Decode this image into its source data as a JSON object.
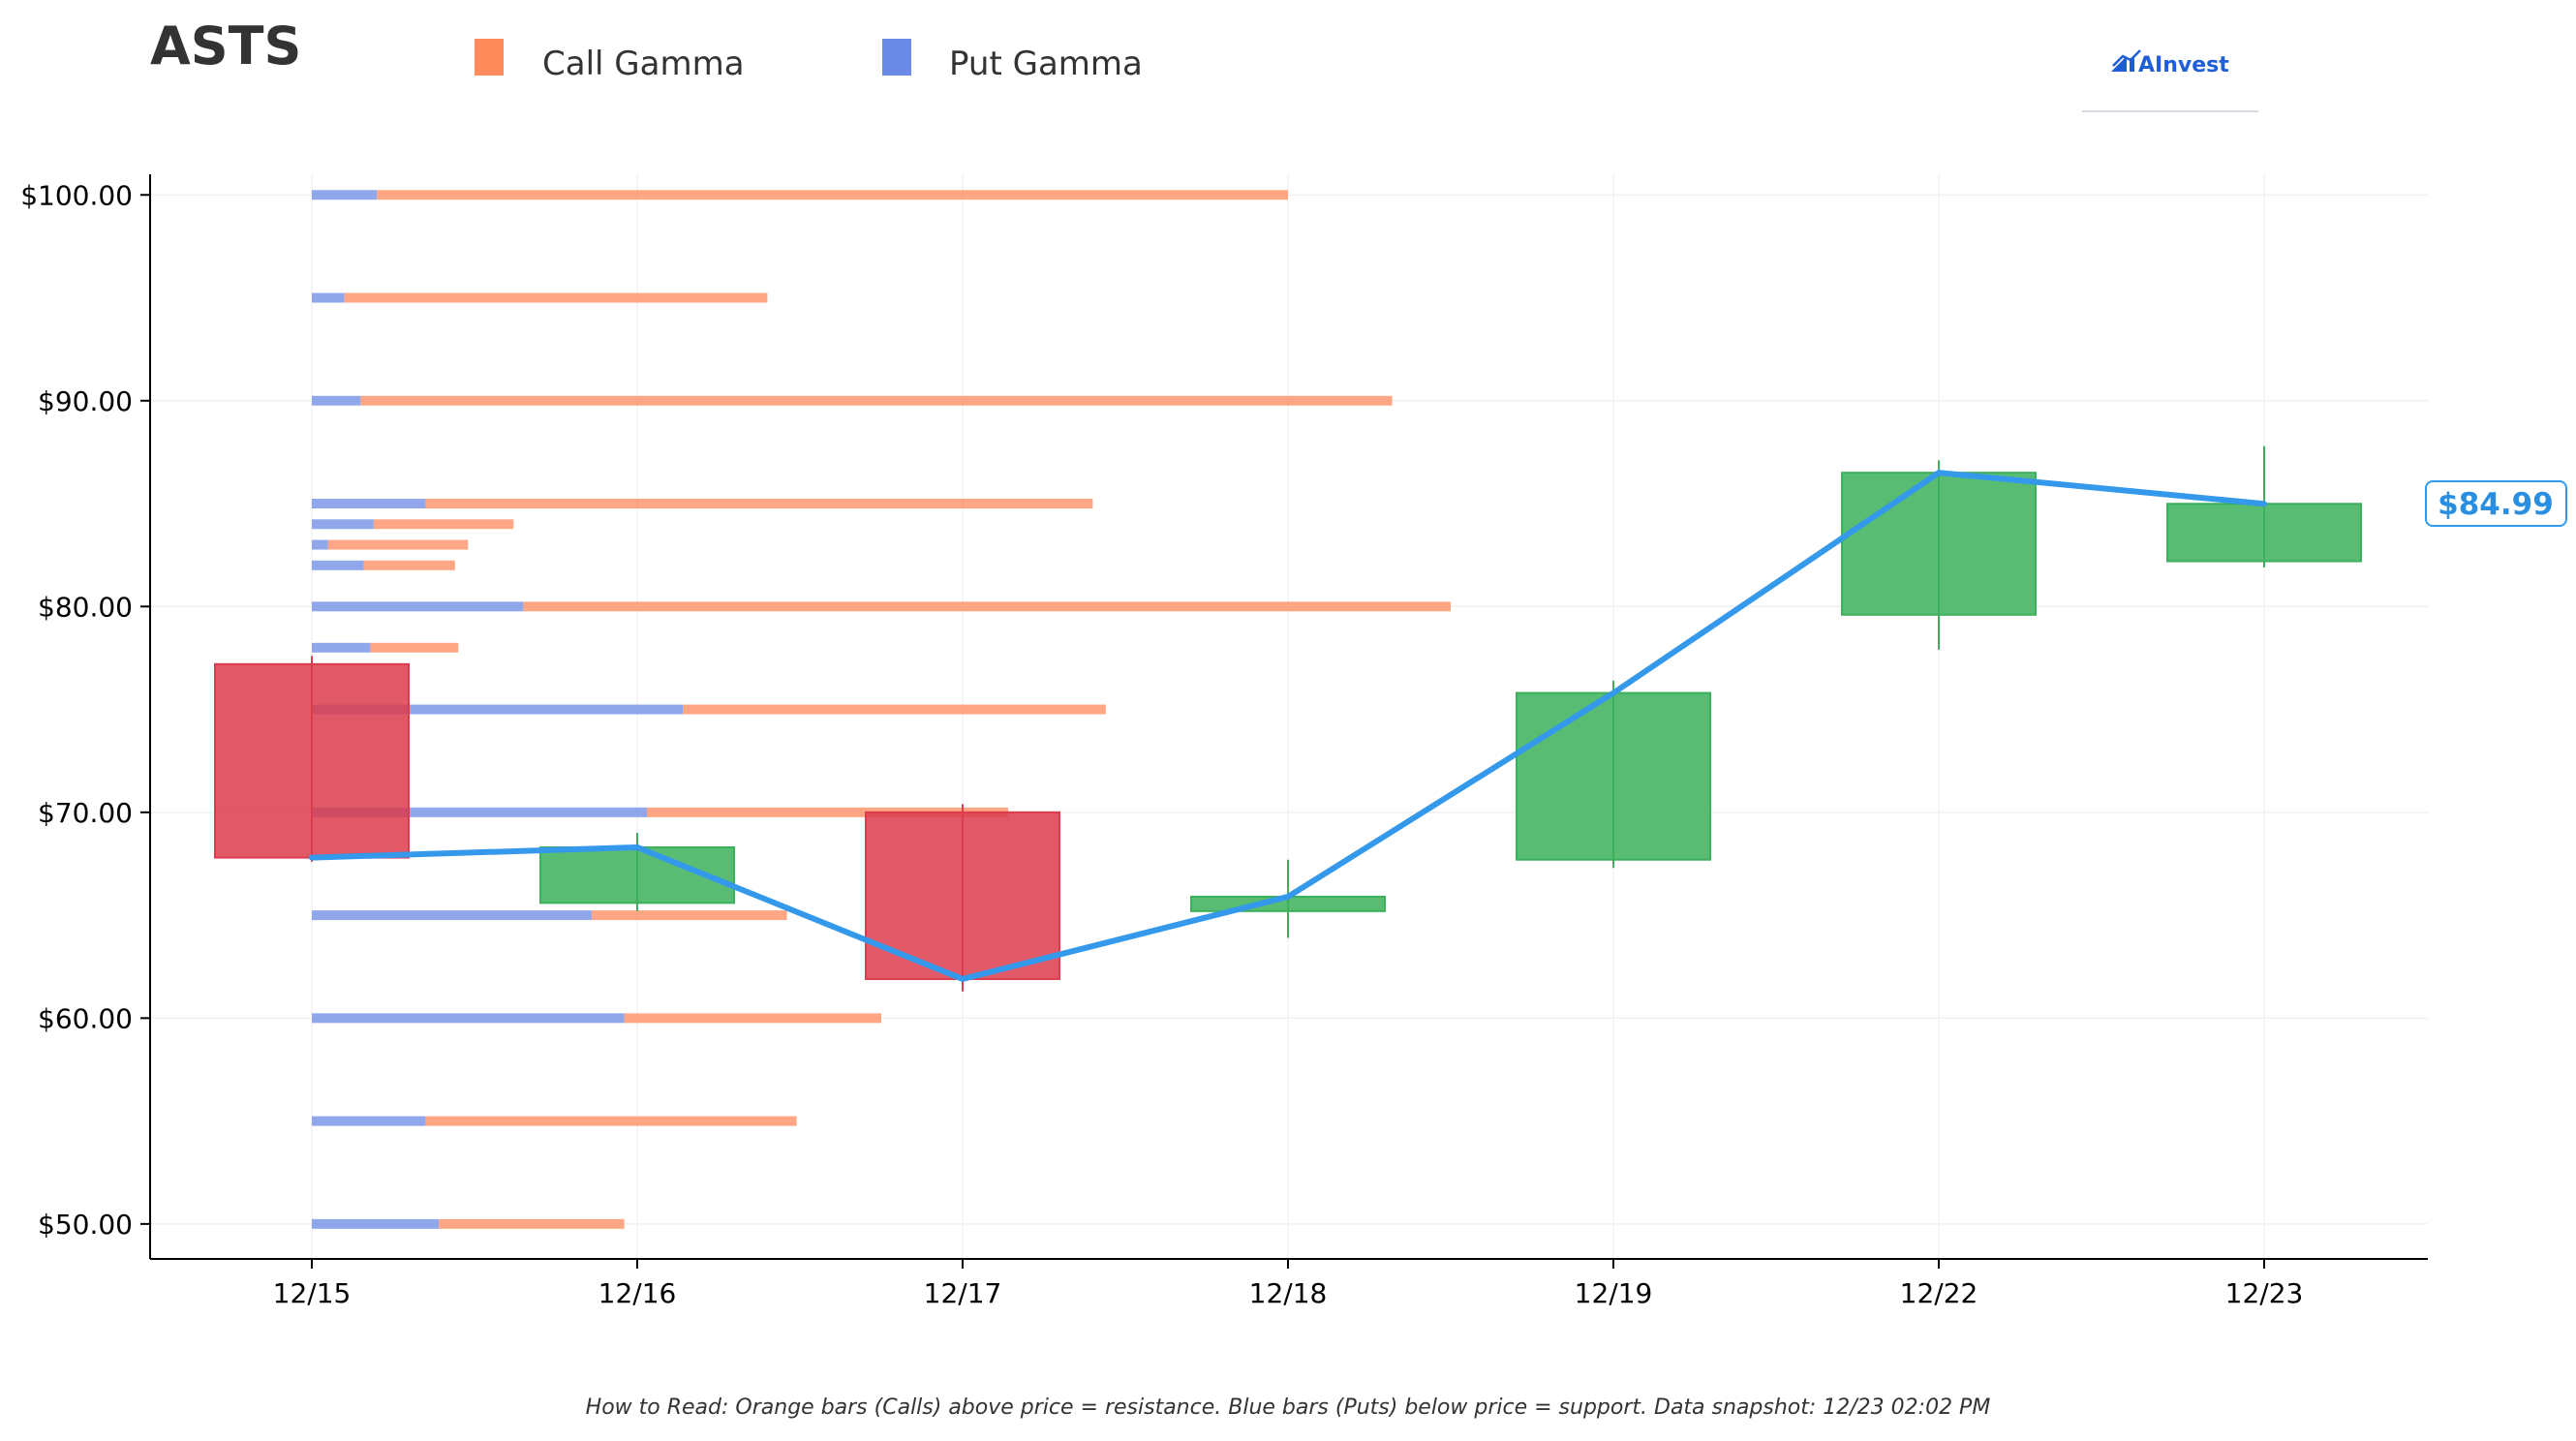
{
  "chart_data": {
    "type": "candlestick",
    "title": "ASTS",
    "legend": [
      {
        "label": "Call Gamma",
        "color": "#ff8a5c"
      },
      {
        "label": "Put Gamma",
        "color": "#6b8ae6"
      }
    ],
    "legend_placement": "top",
    "brand": "AInvest",
    "categories": [
      "12/15",
      "12/16",
      "12/17",
      "12/18",
      "12/19",
      "12/22",
      "12/23"
    ],
    "ylim": [
      48.3,
      101.0
    ],
    "yticks": [
      50,
      60,
      70,
      80,
      90,
      100
    ],
    "ytick_labels": [
      "$50.00",
      "$60.00",
      "$70.00",
      "$80.00",
      "$90.00",
      "$100.00"
    ],
    "grid": true,
    "candles": [
      {
        "date": "12/15",
        "open": 77.2,
        "high": 77.6,
        "low": 67.6,
        "close": 67.8
      },
      {
        "date": "12/16",
        "open": 65.6,
        "high": 69.0,
        "low": 65.2,
        "close": 68.3
      },
      {
        "date": "12/17",
        "open": 70.0,
        "high": 70.4,
        "low": 61.3,
        "close": 61.9
      },
      {
        "date": "12/18",
        "open": 65.2,
        "high": 67.7,
        "low": 63.9,
        "close": 65.9
      },
      {
        "date": "12/19",
        "open": 67.7,
        "high": 76.4,
        "low": 67.3,
        "close": 75.8
      },
      {
        "date": "12/22",
        "open": 79.6,
        "high": 87.1,
        "low": 77.9,
        "close": 86.5
      },
      {
        "date": "12/23",
        "open": 82.2,
        "high": 87.8,
        "low": 81.9,
        "close": 84.99
      }
    ],
    "price_line": [
      67.8,
      68.3,
      61.9,
      65.9,
      75.8,
      86.5,
      84.99
    ],
    "current_price_label": "$84.99",
    "gamma_levels": [
      {
        "strike": 100,
        "put": 0.2,
        "call": 2.8
      },
      {
        "strike": 95,
        "put": 0.1,
        "call": 1.3
      },
      {
        "strike": 90,
        "put": 0.15,
        "call": 3.17
      },
      {
        "strike": 85,
        "put": 0.35,
        "call": 2.05
      },
      {
        "strike": 84,
        "put": 0.19,
        "call": 0.43
      },
      {
        "strike": 83,
        "put": 0.05,
        "call": 0.43
      },
      {
        "strike": 82,
        "put": 0.16,
        "call": 0.28
      },
      {
        "strike": 80,
        "put": 0.65,
        "call": 2.85
      },
      {
        "strike": 78,
        "put": 0.18,
        "call": 0.27
      },
      {
        "strike": 75,
        "put": 1.14,
        "call": 1.3
      },
      {
        "strike": 70,
        "put": 1.03,
        "call": 1.11
      },
      {
        "strike": 65,
        "put": 0.86,
        "call": 0.6
      },
      {
        "strike": 60,
        "put": 0.96,
        "call": 0.79
      },
      {
        "strike": 55,
        "put": 0.35,
        "call": 1.14
      },
      {
        "strike": 50,
        "put": 0.39,
        "call": 0.57
      }
    ],
    "colors": {
      "up": "#3cb05a",
      "down": "#dc3c4c",
      "price_line": "#3498eb",
      "call": "#ff8a5c",
      "put": "#6b8ae6",
      "text": "#333333"
    }
  },
  "footnote": "How to Read: Orange bars (Calls) above price = resistance. Blue bars (Puts) below price = support. Data snapshot: 12/23 02:02 PM"
}
